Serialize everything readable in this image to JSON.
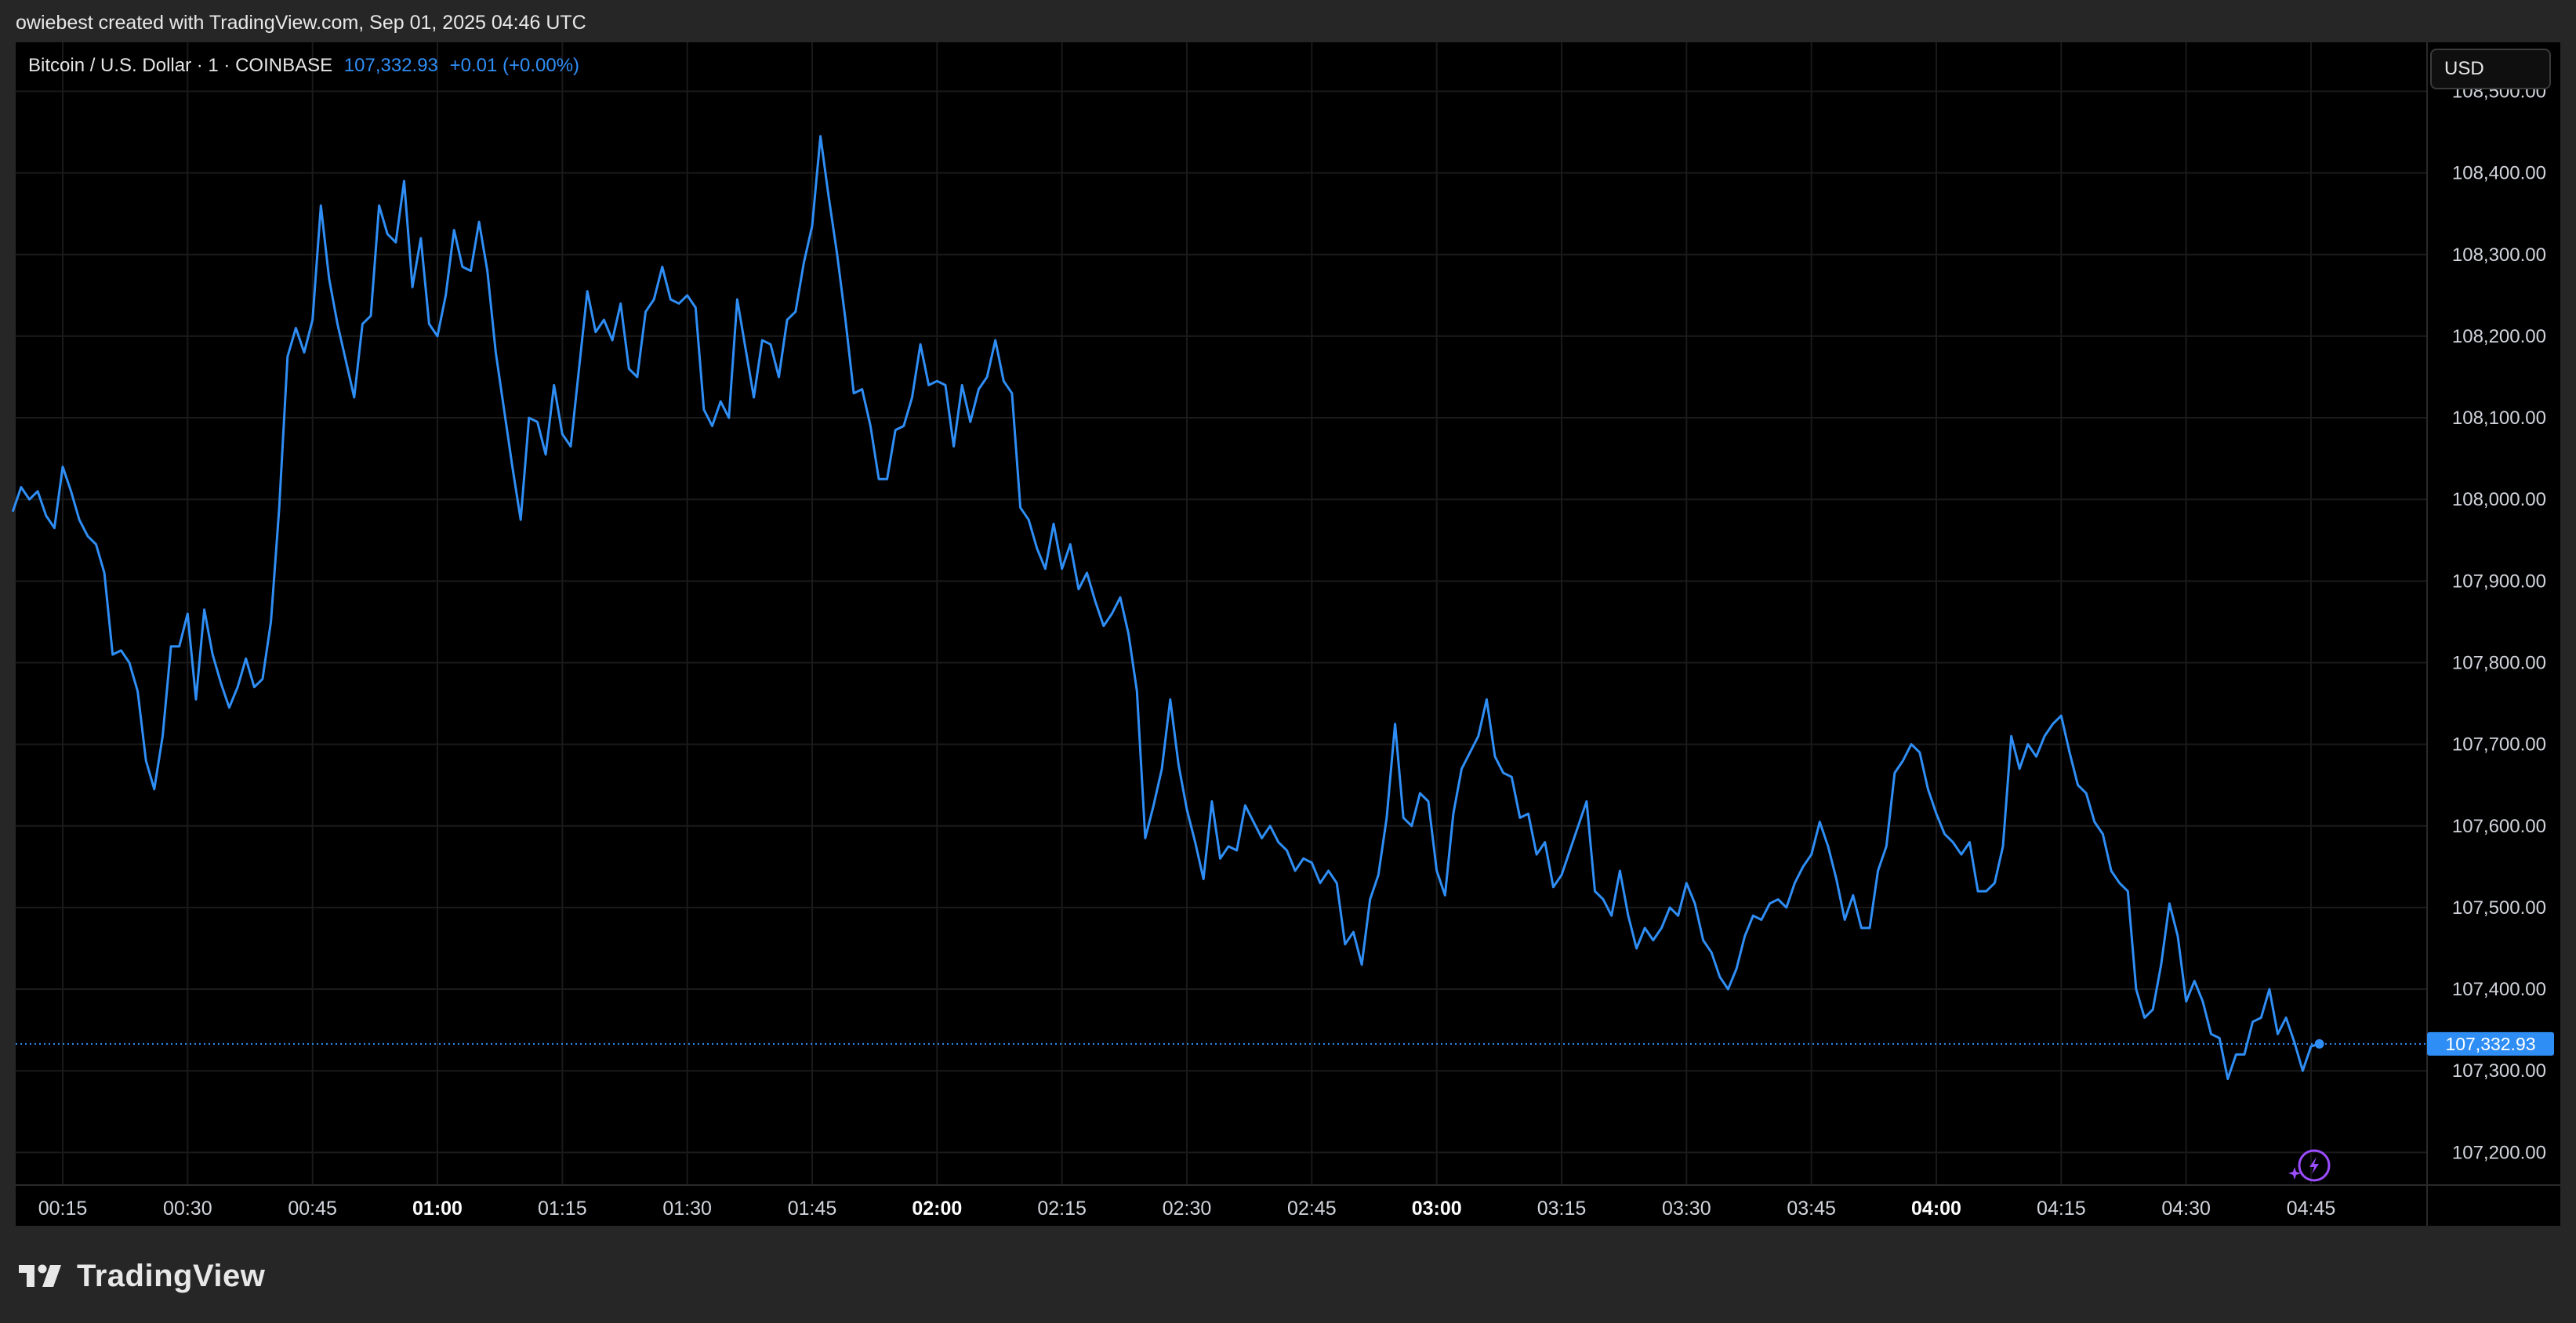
{
  "header": {
    "attribution": "owiebest created with TradingView.com, Sep 01, 2025 04:46 UTC"
  },
  "legend": {
    "symbol": "Bitcoin / U.S. Dollar · 1 · COINBASE",
    "price": "107,332.93",
    "change": "+0.01 (+0.00%)"
  },
  "currency_button": {
    "label": "USD"
  },
  "colors": {
    "line": "#2f8ef5",
    "background": "#000000",
    "frame": "#262626",
    "grid": "#1a1a1a",
    "price_tag": "#2f8ef5",
    "badge": "#9b4dff"
  },
  "footer": {
    "brand": "TradingView",
    "logo_icon": "tradingview-logo-icon"
  },
  "icons": {
    "alert": "lightning-alert-icon"
  },
  "chart_data": {
    "type": "line",
    "title": "Bitcoin / U.S. Dollar · 1 · COINBASE",
    "interval_minutes": 1,
    "start_time": "00:09",
    "end_time": "04:46",
    "x_tick_labels": [
      {
        "label": "00:15",
        "bold": false
      },
      {
        "label": "00:30",
        "bold": false
      },
      {
        "label": "00:45",
        "bold": false
      },
      {
        "label": "01:00",
        "bold": true
      },
      {
        "label": "01:15",
        "bold": false
      },
      {
        "label": "01:30",
        "bold": false
      },
      {
        "label": "01:45",
        "bold": false
      },
      {
        "label": "02:00",
        "bold": true
      },
      {
        "label": "02:15",
        "bold": false
      },
      {
        "label": "02:30",
        "bold": false
      },
      {
        "label": "02:45",
        "bold": false
      },
      {
        "label": "03:00",
        "bold": true
      },
      {
        "label": "03:15",
        "bold": false
      },
      {
        "label": "03:30",
        "bold": false
      },
      {
        "label": "03:45",
        "bold": false
      },
      {
        "label": "04:00",
        "bold": true
      },
      {
        "label": "04:15",
        "bold": false
      },
      {
        "label": "04:30",
        "bold": false
      },
      {
        "label": "04:45",
        "bold": false
      }
    ],
    "y_tick_labels": [
      "108,500.00",
      "108,400.00",
      "108,300.00",
      "108,200.00",
      "108,100.00",
      "108,000.00",
      "107,900.00",
      "107,800.00",
      "107,700.00",
      "107,600.00",
      "107,500.00",
      "107,400.00",
      "107,300.00",
      "107,200.00"
    ],
    "ylim": [
      107160,
      108560
    ],
    "grid": true,
    "last_price": 107332.93,
    "last_price_label": "107,332.93",
    "points": [
      [
        "00:09",
        107985
      ],
      [
        "00:10",
        108015
      ],
      [
        "00:11",
        108000
      ],
      [
        "00:12",
        108010
      ],
      [
        "00:13",
        107980
      ],
      [
        "00:14",
        107965
      ],
      [
        "00:15",
        108040
      ],
      [
        "00:16",
        108010
      ],
      [
        "00:17",
        107975
      ],
      [
        "00:18",
        107955
      ],
      [
        "00:19",
        107945
      ],
      [
        "00:20",
        107910
      ],
      [
        "00:21",
        107810
      ],
      [
        "00:22",
        107815
      ],
      [
        "00:23",
        107800
      ],
      [
        "00:24",
        107765
      ],
      [
        "00:25",
        107680
      ],
      [
        "00:26",
        107645
      ],
      [
        "00:27",
        107710
      ],
      [
        "00:28",
        107820
      ],
      [
        "00:29",
        107820
      ],
      [
        "00:30",
        107860
      ],
      [
        "00:31",
        107755
      ],
      [
        "00:32",
        107865
      ],
      [
        "00:33",
        107810
      ],
      [
        "00:34",
        107775
      ],
      [
        "00:35",
        107745
      ],
      [
        "00:36",
        107770
      ],
      [
        "00:37",
        107805
      ],
      [
        "00:38",
        107770
      ],
      [
        "00:39",
        107780
      ],
      [
        "00:40",
        107850
      ],
      [
        "00:41",
        107990
      ],
      [
        "00:42",
        108175
      ],
      [
        "00:43",
        108210
      ],
      [
        "00:44",
        108180
      ],
      [
        "00:45",
        108220
      ],
      [
        "00:46",
        108360
      ],
      [
        "00:47",
        108270
      ],
      [
        "00:48",
        108215
      ],
      [
        "00:49",
        108170
      ],
      [
        "00:50",
        108125
      ],
      [
        "00:51",
        108215
      ],
      [
        "00:52",
        108225
      ],
      [
        "00:53",
        108360
      ],
      [
        "00:54",
        108325
      ],
      [
        "00:55",
        108315
      ],
      [
        "00:56",
        108390
      ],
      [
        "00:57",
        108260
      ],
      [
        "00:58",
        108320
      ],
      [
        "00:59",
        108215
      ],
      [
        "01:00",
        108200
      ],
      [
        "01:01",
        108250
      ],
      [
        "01:02",
        108330
      ],
      [
        "01:03",
        108285
      ],
      [
        "01:04",
        108280
      ],
      [
        "01:05",
        108340
      ],
      [
        "01:06",
        108280
      ],
      [
        "01:07",
        108180
      ],
      [
        "01:08",
        108110
      ],
      [
        "01:09",
        108040
      ],
      [
        "01:10",
        107975
      ],
      [
        "01:11",
        108100
      ],
      [
        "01:12",
        108095
      ],
      [
        "01:13",
        108055
      ],
      [
        "01:14",
        108140
      ],
      [
        "01:15",
        108080
      ],
      [
        "01:16",
        108065
      ],
      [
        "01:17",
        108160
      ],
      [
        "01:18",
        108255
      ],
      [
        "01:19",
        108205
      ],
      [
        "01:20",
        108220
      ],
      [
        "01:21",
        108195
      ],
      [
        "01:22",
        108240
      ],
      [
        "01:23",
        108160
      ],
      [
        "01:24",
        108150
      ],
      [
        "01:25",
        108230
      ],
      [
        "01:26",
        108245
      ],
      [
        "01:27",
        108285
      ],
      [
        "01:28",
        108245
      ],
      [
        "01:29",
        108240
      ],
      [
        "01:30",
        108250
      ],
      [
        "01:31",
        108235
      ],
      [
        "01:32",
        108110
      ],
      [
        "01:33",
        108090
      ],
      [
        "01:34",
        108120
      ],
      [
        "01:35",
        108100
      ],
      [
        "01:36",
        108245
      ],
      [
        "01:37",
        108185
      ],
      [
        "01:38",
        108125
      ],
      [
        "01:39",
        108195
      ],
      [
        "01:40",
        108190
      ],
      [
        "01:41",
        108150
      ],
      [
        "01:42",
        108220
      ],
      [
        "01:43",
        108230
      ],
      [
        "01:44",
        108290
      ],
      [
        "01:45",
        108335
      ],
      [
        "01:46",
        108445
      ],
      [
        "01:47",
        108370
      ],
      [
        "01:48",
        108300
      ],
      [
        "01:49",
        108220
      ],
      [
        "01:50",
        108130
      ],
      [
        "01:51",
        108135
      ],
      [
        "01:52",
        108090
      ],
      [
        "01:53",
        108025
      ],
      [
        "01:54",
        108025
      ],
      [
        "01:55",
        108085
      ],
      [
        "01:56",
        108090
      ],
      [
        "01:57",
        108125
      ],
      [
        "01:58",
        108190
      ],
      [
        "01:59",
        108140
      ],
      [
        "02:00",
        108145
      ],
      [
        "02:01",
        108140
      ],
      [
        "02:02",
        108065
      ],
      [
        "02:03",
        108140
      ],
      [
        "02:04",
        108095
      ],
      [
        "02:05",
        108135
      ],
      [
        "02:06",
        108150
      ],
      [
        "02:07",
        108195
      ],
      [
        "02:08",
        108145
      ],
      [
        "02:09",
        108130
      ],
      [
        "02:10",
        107990
      ],
      [
        "02:11",
        107975
      ],
      [
        "02:12",
        107940
      ],
      [
        "02:13",
        107915
      ],
      [
        "02:14",
        107970
      ],
      [
        "02:15",
        107915
      ],
      [
        "02:16",
        107945
      ],
      [
        "02:17",
        107890
      ],
      [
        "02:18",
        107910
      ],
      [
        "02:19",
        107875
      ],
      [
        "02:20",
        107845
      ],
      [
        "02:21",
        107860
      ],
      [
        "02:22",
        107880
      ],
      [
        "02:23",
        107835
      ],
      [
        "02:24",
        107765
      ],
      [
        "02:25",
        107585
      ],
      [
        "02:26",
        107625
      ],
      [
        "02:27",
        107670
      ],
      [
        "02:28",
        107755
      ],
      [
        "02:29",
        107675
      ],
      [
        "02:30",
        107620
      ],
      [
        "02:31",
        107580
      ],
      [
        "02:32",
        107535
      ],
      [
        "02:33",
        107630
      ],
      [
        "02:34",
        107560
      ],
      [
        "02:35",
        107575
      ],
      [
        "02:36",
        107570
      ],
      [
        "02:37",
        107625
      ],
      [
        "02:38",
        107605
      ],
      [
        "02:39",
        107585
      ],
      [
        "02:40",
        107600
      ],
      [
        "02:41",
        107580
      ],
      [
        "02:42",
        107570
      ],
      [
        "02:43",
        107545
      ],
      [
        "02:44",
        107560
      ],
      [
        "02:45",
        107555
      ],
      [
        "02:46",
        107530
      ],
      [
        "02:47",
        107545
      ],
      [
        "02:48",
        107530
      ],
      [
        "02:49",
        107455
      ],
      [
        "02:50",
        107470
      ],
      [
        "02:51",
        107430
      ],
      [
        "02:52",
        107510
      ],
      [
        "02:53",
        107540
      ],
      [
        "02:54",
        107610
      ],
      [
        "02:55",
        107725
      ],
      [
        "02:56",
        107610
      ],
      [
        "02:57",
        107600
      ],
      [
        "02:58",
        107640
      ],
      [
        "02:59",
        107630
      ],
      [
        "03:00",
        107545
      ],
      [
        "03:01",
        107515
      ],
      [
        "03:02",
        107615
      ],
      [
        "03:03",
        107670
      ],
      [
        "03:04",
        107690
      ],
      [
        "03:05",
        107710
      ],
      [
        "03:06",
        107755
      ],
      [
        "03:07",
        107685
      ],
      [
        "03:08",
        107665
      ],
      [
        "03:09",
        107660
      ],
      [
        "03:10",
        107610
      ],
      [
        "03:11",
        107615
      ],
      [
        "03:12",
        107565
      ],
      [
        "03:13",
        107580
      ],
      [
        "03:14",
        107525
      ],
      [
        "03:15",
        107540
      ],
      [
        "03:16",
        107570
      ],
      [
        "03:17",
        107600
      ],
      [
        "03:18",
        107630
      ],
      [
        "03:19",
        107520
      ],
      [
        "03:20",
        107510
      ],
      [
        "03:21",
        107490
      ],
      [
        "03:22",
        107545
      ],
      [
        "03:23",
        107490
      ],
      [
        "03:24",
        107450
      ],
      [
        "03:25",
        107475
      ],
      [
        "03:26",
        107460
      ],
      [
        "03:27",
        107475
      ],
      [
        "03:28",
        107500
      ],
      [
        "03:29",
        107490
      ],
      [
        "03:30",
        107530
      ],
      [
        "03:31",
        107505
      ],
      [
        "03:32",
        107460
      ],
      [
        "03:33",
        107445
      ],
      [
        "03:34",
        107415
      ],
      [
        "03:35",
        107400
      ],
      [
        "03:36",
        107425
      ],
      [
        "03:37",
        107465
      ],
      [
        "03:38",
        107490
      ],
      [
        "03:39",
        107485
      ],
      [
        "03:40",
        107505
      ],
      [
        "03:41",
        107510
      ],
      [
        "03:42",
        107500
      ],
      [
        "03:43",
        107530
      ],
      [
        "03:44",
        107550
      ],
      [
        "03:45",
        107565
      ],
      [
        "03:46",
        107605
      ],
      [
        "03:47",
        107575
      ],
      [
        "03:48",
        107535
      ],
      [
        "03:49",
        107485
      ],
      [
        "03:50",
        107515
      ],
      [
        "03:51",
        107475
      ],
      [
        "03:52",
        107475
      ],
      [
        "03:53",
        107545
      ],
      [
        "03:54",
        107575
      ],
      [
        "03:55",
        107665
      ],
      [
        "03:56",
        107680
      ],
      [
        "03:57",
        107700
      ],
      [
        "03:58",
        107690
      ],
      [
        "03:59",
        107645
      ],
      [
        "04:00",
        107615
      ],
      [
        "04:01",
        107590
      ],
      [
        "04:02",
        107580
      ],
      [
        "04:03",
        107565
      ],
      [
        "04:04",
        107580
      ],
      [
        "04:05",
        107520
      ],
      [
        "04:06",
        107520
      ],
      [
        "04:07",
        107530
      ],
      [
        "04:08",
        107575
      ],
      [
        "04:09",
        107710
      ],
      [
        "04:10",
        107670
      ],
      [
        "04:11",
        107700
      ],
      [
        "04:12",
        107685
      ],
      [
        "04:13",
        107710
      ],
      [
        "04:14",
        107725
      ],
      [
        "04:15",
        107735
      ],
      [
        "04:16",
        107690
      ],
      [
        "04:17",
        107650
      ],
      [
        "04:18",
        107640
      ],
      [
        "04:19",
        107605
      ],
      [
        "04:20",
        107590
      ],
      [
        "04:21",
        107545
      ],
      [
        "04:22",
        107530
      ],
      [
        "04:23",
        107520
      ],
      [
        "04:24",
        107400
      ],
      [
        "04:25",
        107365
      ],
      [
        "04:26",
        107375
      ],
      [
        "04:27",
        107430
      ],
      [
        "04:28",
        107505
      ],
      [
        "04:29",
        107465
      ],
      [
        "04:30",
        107385
      ],
      [
        "04:31",
        107410
      ],
      [
        "04:32",
        107385
      ],
      [
        "04:33",
        107345
      ],
      [
        "04:34",
        107340
      ],
      [
        "04:35",
        107290
      ],
      [
        "04:36",
        107320
      ],
      [
        "04:37",
        107320
      ],
      [
        "04:38",
        107360
      ],
      [
        "04:39",
        107365
      ],
      [
        "04:40",
        107400
      ],
      [
        "04:41",
        107345
      ],
      [
        "04:42",
        107365
      ],
      [
        "04:43",
        107335
      ],
      [
        "04:44",
        107300
      ],
      [
        "04:45",
        107330
      ],
      [
        "04:46",
        107332.93
      ]
    ]
  }
}
